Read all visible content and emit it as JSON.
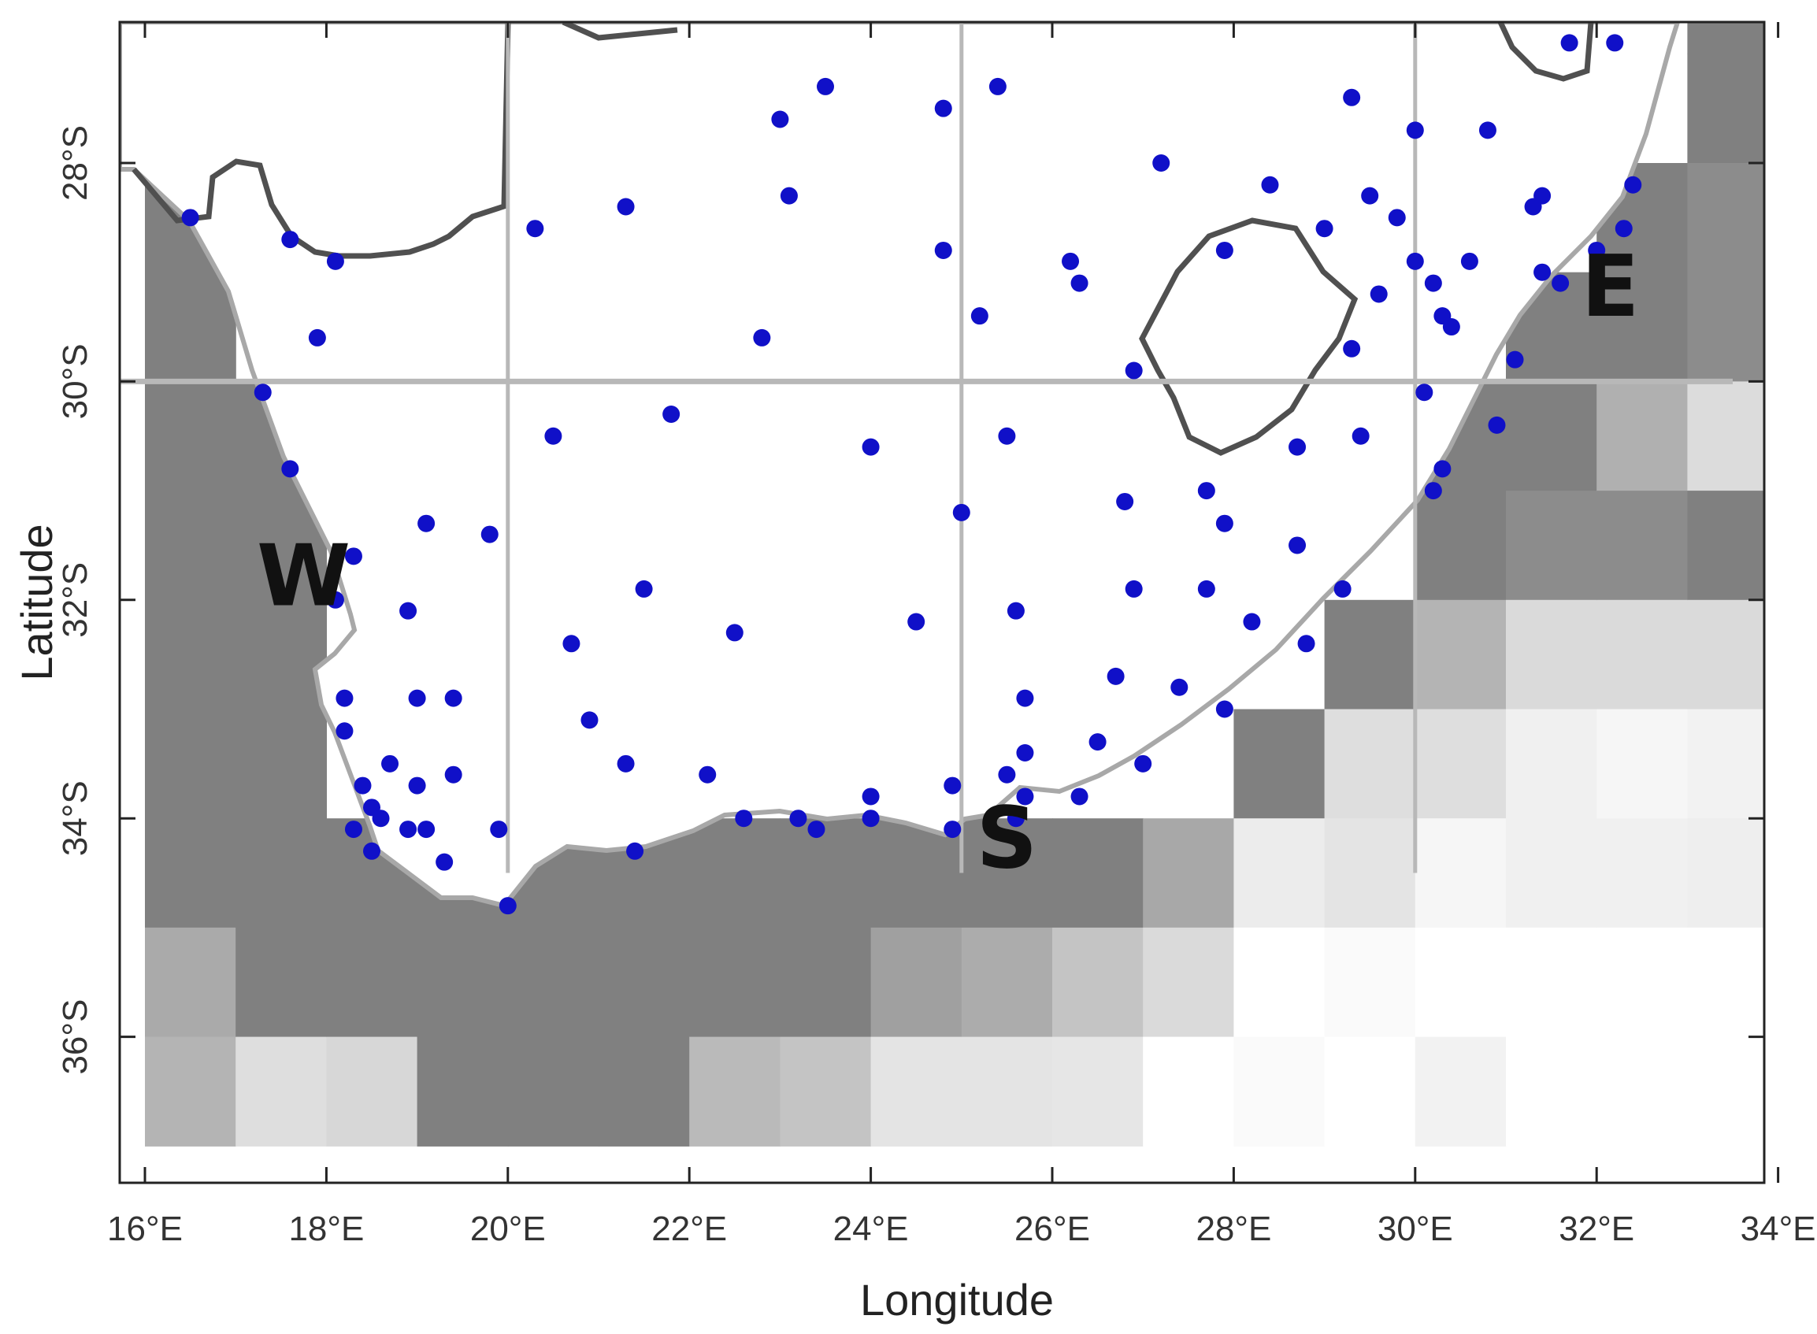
{
  "map": {
    "xlabel": "Longitude",
    "ylabel": "Latitude",
    "lon_range": [
      16,
      34
    ],
    "lat_range": [
      -37,
      -26.5
    ],
    "x_ticks": [
      {
        "value": 16,
        "label": "16°E"
      },
      {
        "value": 18,
        "label": "18°E"
      },
      {
        "value": 20,
        "label": "20°E"
      },
      {
        "value": 22,
        "label": "22°E"
      },
      {
        "value": 24,
        "label": "24°E"
      },
      {
        "value": 26,
        "label": "26°E"
      },
      {
        "value": 28,
        "label": "28°E"
      },
      {
        "value": 30,
        "label": "30°E"
      },
      {
        "value": 32,
        "label": "32°E"
      },
      {
        "value": 34,
        "label": "34°E"
      }
    ],
    "y_ticks": [
      {
        "value": -28,
        "label": "28°S"
      },
      {
        "value": -30,
        "label": "30°S"
      },
      {
        "value": -32,
        "label": "32°S"
      },
      {
        "value": -34,
        "label": "34°S"
      },
      {
        "value": -36,
        "label": "36°S"
      }
    ],
    "region_labels": [
      {
        "text": "W",
        "lon": 17.75,
        "lat": -32.05
      },
      {
        "text": "S",
        "lon": 25.5,
        "lat": -34.45
      },
      {
        "text": "E",
        "lon": 32.15,
        "lat": -29.4
      }
    ],
    "colors": {
      "land": "#ffffff",
      "ocean_dark": "#808080",
      "station": "#1010c8",
      "border": "#505050",
      "grid": "#b8b8b8"
    },
    "ocean_cell_size_deg": 1,
    "ocean_cells": [
      {
        "lon": 16,
        "lat": -29,
        "v": 128
      },
      {
        "lon": 16,
        "lat": -30,
        "v": 128
      },
      {
        "lon": 16,
        "lat": -31,
        "v": 128
      },
      {
        "lon": 16,
        "lat": -32,
        "v": 128
      },
      {
        "lon": 16,
        "lat": -33,
        "v": 128
      },
      {
        "lon": 16,
        "lat": -34,
        "v": 128
      },
      {
        "lon": 16,
        "lat": -35,
        "v": 128
      },
      {
        "lon": 16,
        "lat": -36,
        "v": 170
      },
      {
        "lon": 16,
        "lat": -37,
        "v": 180
      },
      {
        "lon": 17,
        "lat": -31,
        "v": 128
      },
      {
        "lon": 17,
        "lat": -32,
        "v": 128
      },
      {
        "lon": 17,
        "lat": -33,
        "v": 128
      },
      {
        "lon": 17,
        "lat": -34,
        "v": 128
      },
      {
        "lon": 17,
        "lat": -35,
        "v": 128
      },
      {
        "lon": 17,
        "lat": -36,
        "v": 128
      },
      {
        "lon": 17,
        "lat": -37,
        "v": 222
      },
      {
        "lon": 18,
        "lat": -35,
        "v": 128
      },
      {
        "lon": 18,
        "lat": -36,
        "v": 128
      },
      {
        "lon": 18,
        "lat": -37,
        "v": 215
      },
      {
        "lon": 19,
        "lat": -35,
        "v": 128
      },
      {
        "lon": 19,
        "lat": -36,
        "v": 128
      },
      {
        "lon": 19,
        "lat": -37,
        "v": 128
      },
      {
        "lon": 20,
        "lat": -35,
        "v": 128
      },
      {
        "lon": 20,
        "lat": -36,
        "v": 128
      },
      {
        "lon": 20,
        "lat": -37,
        "v": 128
      },
      {
        "lon": 21,
        "lat": -35,
        "v": 128
      },
      {
        "lon": 21,
        "lat": -36,
        "v": 128
      },
      {
        "lon": 21,
        "lat": -37,
        "v": 128
      },
      {
        "lon": 22,
        "lat": -35,
        "v": 128
      },
      {
        "lon": 22,
        "lat": -36,
        "v": 128
      },
      {
        "lon": 22,
        "lat": -37,
        "v": 186
      },
      {
        "lon": 23,
        "lat": -35,
        "v": 128
      },
      {
        "lon": 23,
        "lat": -36,
        "v": 128
      },
      {
        "lon": 23,
        "lat": -37,
        "v": 196
      },
      {
        "lon": 24,
        "lat": -35,
        "v": 128
      },
      {
        "lon": 24,
        "lat": -36,
        "v": 160
      },
      {
        "lon": 24,
        "lat": -37,
        "v": 228
      },
      {
        "lon": 25,
        "lat": -35,
        "v": 128
      },
      {
        "lon": 25,
        "lat": -36,
        "v": 172
      },
      {
        "lon": 25,
        "lat": -37,
        "v": 228
      },
      {
        "lon": 26,
        "lat": -35,
        "v": 128
      },
      {
        "lon": 26,
        "lat": -36,
        "v": 196
      },
      {
        "lon": 26,
        "lat": -37,
        "v": 230
      },
      {
        "lon": 27,
        "lat": -35,
        "v": 168
      },
      {
        "lon": 27,
        "lat": -36,
        "v": 218
      },
      {
        "lon": 27,
        "lat": -37,
        "v": 255
      },
      {
        "lon": 28,
        "lat": -34,
        "v": 128
      },
      {
        "lon": 28,
        "lat": -35,
        "v": 236
      },
      {
        "lon": 28,
        "lat": -36,
        "v": 255
      },
      {
        "lon": 28,
        "lat": -37,
        "v": 250
      },
      {
        "lon": 29,
        "lat": -33,
        "v": 128
      },
      {
        "lon": 29,
        "lat": -34,
        "v": 222
      },
      {
        "lon": 29,
        "lat": -35,
        "v": 228
      },
      {
        "lon": 29,
        "lat": -36,
        "v": 250
      },
      {
        "lon": 29,
        "lat": -37,
        "v": 255
      },
      {
        "lon": 30,
        "lat": -31,
        "v": 128
      },
      {
        "lon": 30,
        "lat": -32,
        "v": 128
      },
      {
        "lon": 30,
        "lat": -33,
        "v": 180
      },
      {
        "lon": 30,
        "lat": -34,
        "v": 222
      },
      {
        "lon": 30,
        "lat": -35,
        "v": 246
      },
      {
        "lon": 30,
        "lat": -36,
        "v": 255
      },
      {
        "lon": 30,
        "lat": -37,
        "v": 242
      },
      {
        "lon": 31,
        "lat": -30,
        "v": 128
      },
      {
        "lon": 31,
        "lat": -31,
        "v": 128
      },
      {
        "lon": 31,
        "lat": -32,
        "v": 140
      },
      {
        "lon": 31,
        "lat": -33,
        "v": 218
      },
      {
        "lon": 31,
        "lat": -34,
        "v": 240
      },
      {
        "lon": 31,
        "lat": -35,
        "v": 240
      },
      {
        "lon": 31,
        "lat": -36,
        "v": 255
      },
      {
        "lon": 31,
        "lat": -37,
        "v": 255
      },
      {
        "lon": 32,
        "lat": -29,
        "v": 128
      },
      {
        "lon": 32,
        "lat": -30,
        "v": 128
      },
      {
        "lon": 32,
        "lat": -31,
        "v": 176
      },
      {
        "lon": 32,
        "lat": -32,
        "v": 140
      },
      {
        "lon": 32,
        "lat": -33,
        "v": 218
      },
      {
        "lon": 32,
        "lat": -34,
        "v": 246
      },
      {
        "lon": 32,
        "lat": -35,
        "v": 240
      },
      {
        "lon": 32,
        "lat": -36,
        "v": 255
      },
      {
        "lon": 32,
        "lat": -37,
        "v": 255
      },
      {
        "lon": 33,
        "lat": -27,
        "v": 128
      },
      {
        "lon": 33,
        "lat": -28,
        "v": 128
      },
      {
        "lon": 33,
        "lat": -29,
        "v": 140
      },
      {
        "lon": 33,
        "lat": -30,
        "v": 140
      },
      {
        "lon": 33,
        "lat": -31,
        "v": 220
      },
      {
        "lon": 33,
        "lat": -32,
        "v": 128
      },
      {
        "lon": 33,
        "lat": -33,
        "v": 218
      },
      {
        "lon": 33,
        "lat": -34,
        "v": 242
      },
      {
        "lon": 33,
        "lat": -35,
        "v": 238
      },
      {
        "lon": 33,
        "lat": -36,
        "v": 255
      },
      {
        "lon": 33,
        "lat": -37,
        "v": 255
      }
    ],
    "stations": [
      [
        16.5,
        -28.5
      ],
      [
        17.6,
        -28.7
      ],
      [
        18.1,
        -28.9
      ],
      [
        17.9,
        -29.6
      ],
      [
        17.3,
        -30.1
      ],
      [
        17.6,
        -30.8
      ],
      [
        18.3,
        -31.6
      ],
      [
        18.1,
        -32.0
      ],
      [
        19.1,
        -31.3
      ],
      [
        19.8,
        -31.4
      ],
      [
        18.9,
        -32.1
      ],
      [
        18.2,
        -32.9
      ],
      [
        18.2,
        -33.2
      ],
      [
        19.0,
        -32.9
      ],
      [
        19.4,
        -32.9
      ],
      [
        18.4,
        -33.7
      ],
      [
        18.5,
        -33.9
      ],
      [
        18.3,
        -34.1
      ],
      [
        18.6,
        -34.0
      ],
      [
        18.5,
        -34.3
      ],
      [
        18.7,
        -33.5
      ],
      [
        19.0,
        -33.7
      ],
      [
        19.4,
        -33.6
      ],
      [
        18.9,
        -34.1
      ],
      [
        19.1,
        -34.1
      ],
      [
        19.3,
        -34.4
      ],
      [
        19.9,
        -34.1
      ],
      [
        20.0,
        -34.8
      ],
      [
        20.3,
        -28.6
      ],
      [
        20.5,
        -30.5
      ],
      [
        20.7,
        -32.4
      ],
      [
        20.9,
        -33.1
      ],
      [
        21.3,
        -33.5
      ],
      [
        21.4,
        -34.3
      ],
      [
        21.5,
        -31.9
      ],
      [
        21.3,
        -28.4
      ],
      [
        21.8,
        -30.3
      ],
      [
        22.2,
        -33.6
      ],
      [
        22.5,
        -32.3
      ],
      [
        22.6,
        -34.0
      ],
      [
        22.8,
        -29.6
      ],
      [
        23.0,
        -27.6
      ],
      [
        23.1,
        -28.3
      ],
      [
        23.2,
        -34.0
      ],
      [
        23.4,
        -34.1
      ],
      [
        23.5,
        -27.3
      ],
      [
        24.0,
        -30.6
      ],
      [
        24.0,
        -33.8
      ],
      [
        24.0,
        -34.0
      ],
      [
        24.5,
        -32.2
      ],
      [
        24.8,
        -27.5
      ],
      [
        24.8,
        -28.8
      ],
      [
        24.9,
        -33.7
      ],
      [
        24.9,
        -34.1
      ],
      [
        25.0,
        -31.2
      ],
      [
        25.2,
        -29.4
      ],
      [
        25.4,
        -27.3
      ],
      [
        25.5,
        -30.5
      ],
      [
        25.5,
        -33.6
      ],
      [
        25.6,
        -32.1
      ],
      [
        25.7,
        -32.9
      ],
      [
        25.7,
        -33.4
      ],
      [
        25.7,
        -33.8
      ],
      [
        25.6,
        -34.0
      ],
      [
        26.2,
        -28.9
      ],
      [
        26.3,
        -29.1
      ],
      [
        26.3,
        -33.8
      ],
      [
        26.5,
        -33.3
      ],
      [
        26.7,
        -32.7
      ],
      [
        26.8,
        -31.1
      ],
      [
        26.9,
        -29.9
      ],
      [
        26.9,
        -31.9
      ],
      [
        27.0,
        -33.5
      ],
      [
        27.2,
        -28.0
      ],
      [
        27.4,
        -32.8
      ],
      [
        27.7,
        -31.0
      ],
      [
        27.7,
        -31.9
      ],
      [
        27.9,
        -31.3
      ],
      [
        27.9,
        -33.0
      ],
      [
        27.9,
        -28.8
      ],
      [
        28.2,
        -32.2
      ],
      [
        28.4,
        -28.2
      ],
      [
        28.7,
        -30.6
      ],
      [
        28.7,
        -31.5
      ],
      [
        28.8,
        -32.4
      ],
      [
        29.0,
        -28.6
      ],
      [
        29.2,
        -31.9
      ],
      [
        29.3,
        -27.4
      ],
      [
        29.3,
        -29.7
      ],
      [
        29.4,
        -30.5
      ],
      [
        29.5,
        -28.3
      ],
      [
        29.6,
        -29.2
      ],
      [
        29.8,
        -28.5
      ],
      [
        30.0,
        -28.9
      ],
      [
        30.0,
        -27.7
      ],
      [
        30.2,
        -29.1
      ],
      [
        30.1,
        -30.1
      ],
      [
        30.3,
        -29.4
      ],
      [
        30.4,
        -29.5
      ],
      [
        30.3,
        -30.8
      ],
      [
        30.2,
        -31.0
      ],
      [
        30.6,
        -28.9
      ],
      [
        30.8,
        -27.7
      ],
      [
        30.9,
        -30.4
      ],
      [
        31.1,
        -29.8
      ],
      [
        31.3,
        -28.4
      ],
      [
        31.4,
        -28.3
      ],
      [
        31.4,
        -29.0
      ],
      [
        31.6,
        -29.1
      ],
      [
        31.7,
        -26.9
      ],
      [
        32.0,
        -28.8
      ],
      [
        32.2,
        -26.9
      ],
      [
        32.3,
        -28.6
      ],
      [
        32.4,
        -28.2
      ]
    ]
  }
}
